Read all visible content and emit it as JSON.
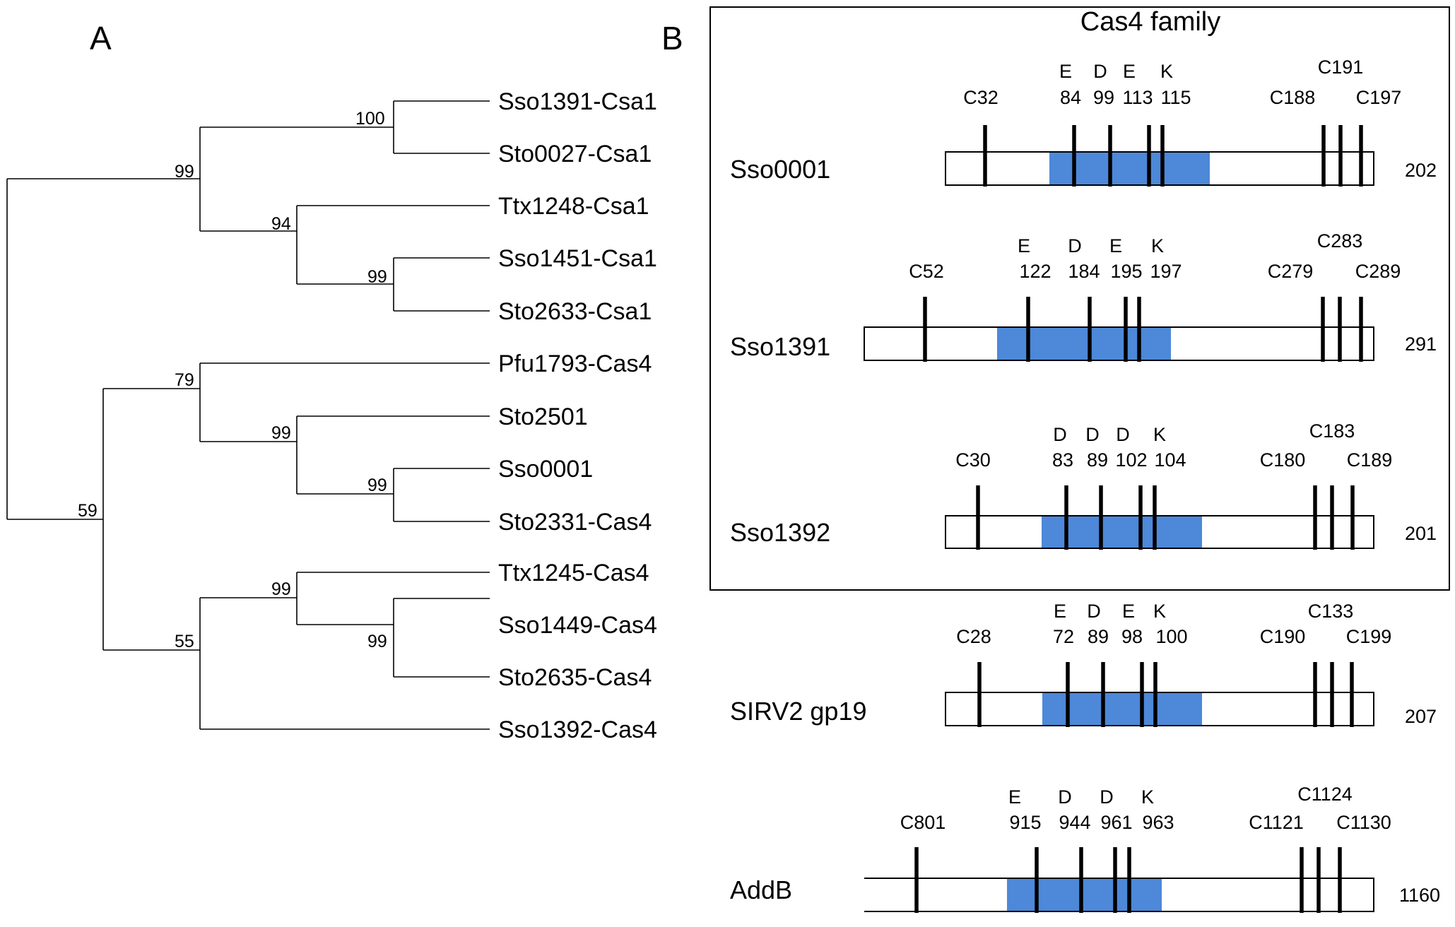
{
  "panels": {
    "a": "A",
    "b": "B"
  },
  "tree": {
    "leaves": [
      "Sso1391-Csa1",
      "Sto0027-Csa1",
      "Ttx1248-Csa1",
      "Sso1451-Csa1",
      "Sto2633-Csa1",
      "Pfu1793-Cas4",
      "Sto2501",
      "Sso0001",
      "Sto2331-Cas4",
      "Ttx1245-Cas4",
      "Sso1449-Cas4",
      "Sto2635-Cas4",
      "Sso1392-Cas4"
    ],
    "bootstrap": [
      "100",
      "99",
      "94",
      "99",
      "79",
      "99",
      "99",
      "59",
      "99",
      "55",
      "99"
    ]
  },
  "family_box": {
    "title": "Cas4 family"
  },
  "proteins": [
    {
      "name": "Sso0001",
      "length": "202",
      "motif_letters": [
        "E",
        "D",
        "E",
        "K"
      ],
      "motif_numbers": [
        "84",
        "99",
        "113",
        "115"
      ],
      "n_cys": "C32",
      "c_cys": [
        "C188",
        "C191",
        "C197"
      ]
    },
    {
      "name": "Sso1391",
      "length": "291",
      "motif_letters": [
        "E",
        "D",
        "E",
        "K"
      ],
      "motif_numbers": [
        "122",
        "184",
        "195",
        "197"
      ],
      "n_cys": "C52",
      "c_cys": [
        "C279",
        "C283",
        "C289"
      ]
    },
    {
      "name": "Sso1392",
      "length": "201",
      "motif_letters": [
        "D",
        "D",
        "D",
        "K"
      ],
      "motif_numbers": [
        "83",
        "89",
        "102",
        "104"
      ],
      "n_cys": "C30",
      "c_cys": [
        "C180",
        "C183",
        "C189"
      ]
    },
    {
      "name": "SIRV2 gp19",
      "length": "207",
      "motif_letters": [
        "E",
        "D",
        "E",
        "K"
      ],
      "motif_numbers": [
        "72",
        "89",
        "98",
        "100"
      ],
      "n_cys": "C28",
      "c_cys": [
        "C190",
        "C133",
        "C199"
      ]
    },
    {
      "name": "AddB",
      "length": "1160",
      "motif_letters": [
        "E",
        "D",
        "D",
        "K"
      ],
      "motif_numbers": [
        "915",
        "944",
        "961",
        "963"
      ],
      "n_cys": "C801",
      "c_cys": [
        "C1121",
        "C1124",
        "C1130"
      ]
    }
  ],
  "colors": {
    "motif_region": "#4d88d9",
    "lines": "#000000"
  }
}
